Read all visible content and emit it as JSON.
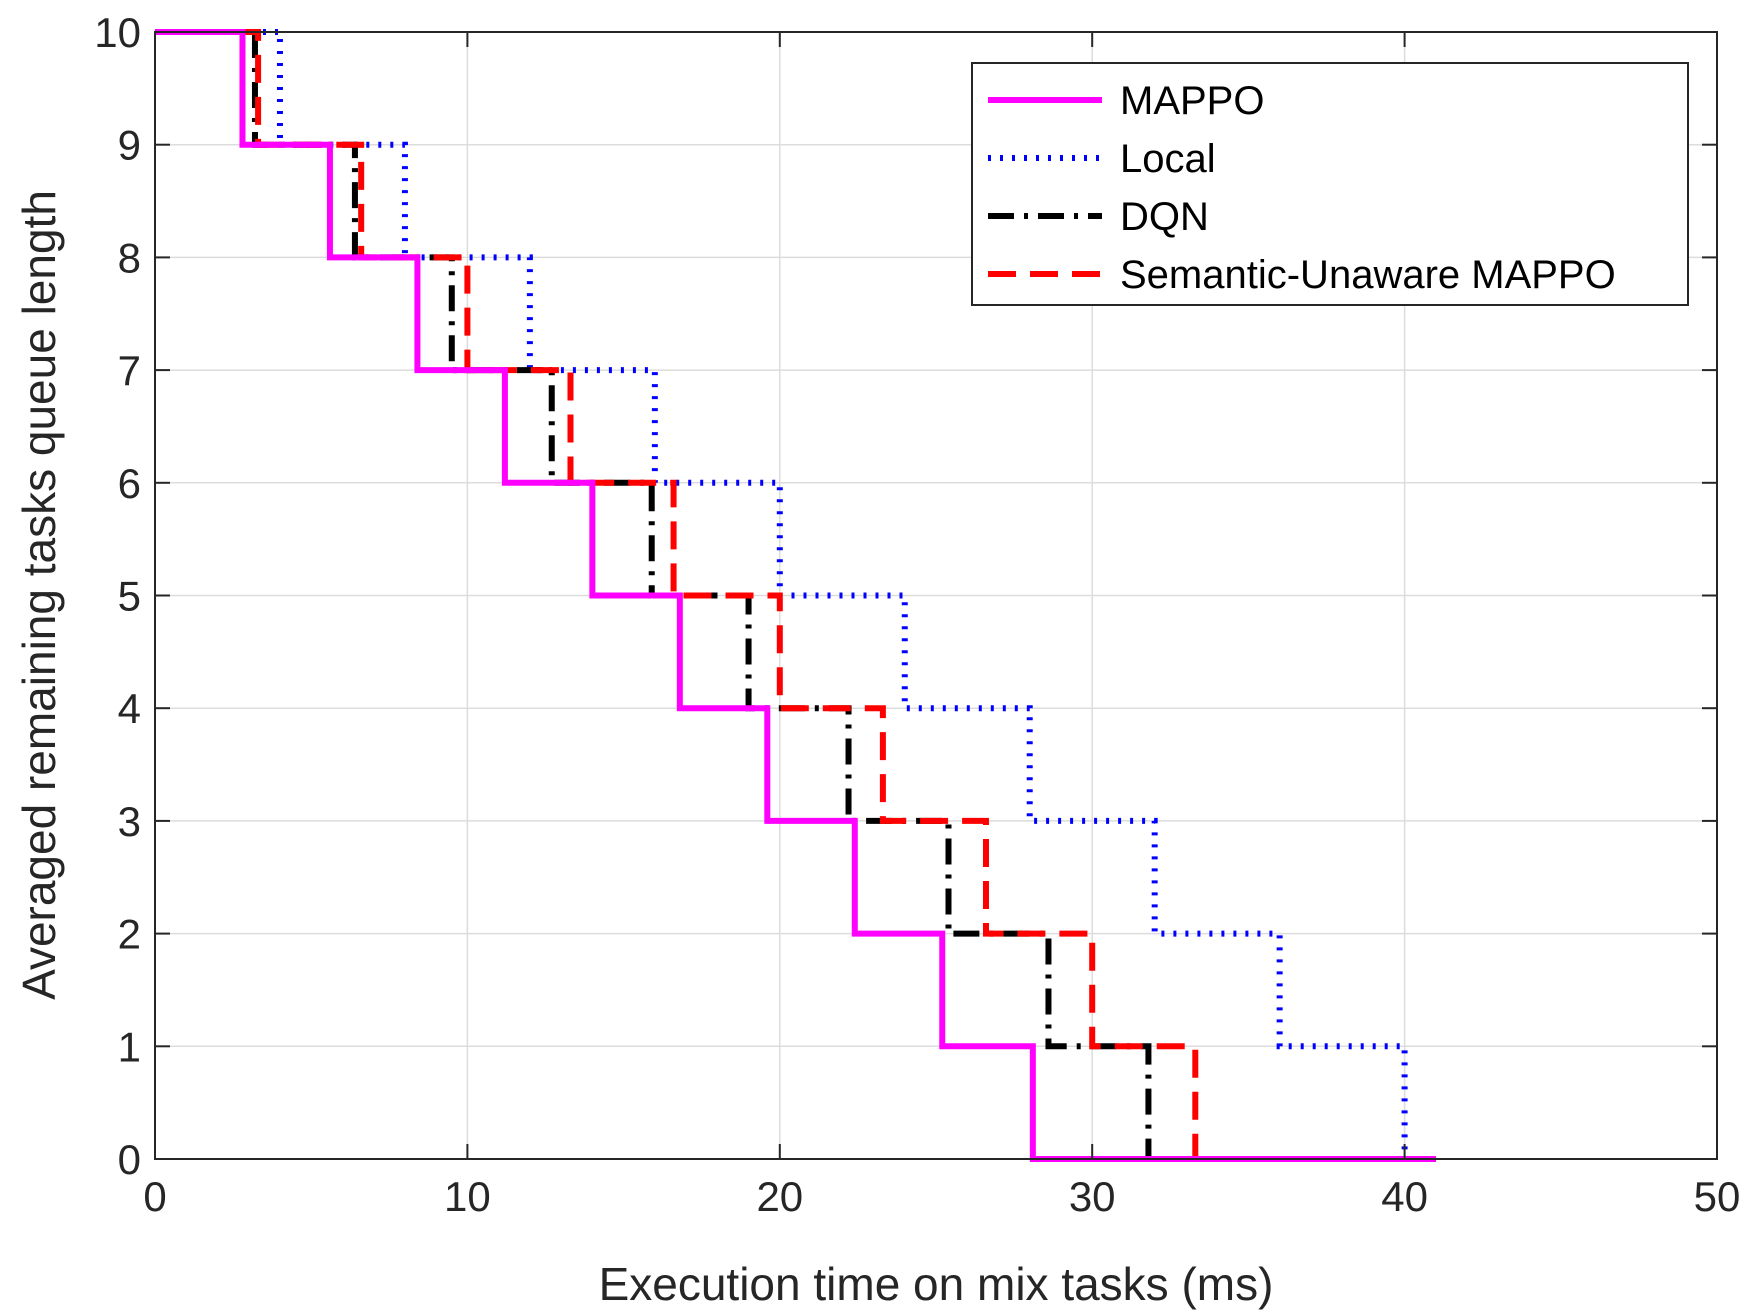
{
  "chart_data": {
    "type": "line",
    "title": "",
    "xlabel": "Execution time on mix tasks (ms)",
    "ylabel": "Averaged remaining tasks queue length",
    "xlim": [
      0,
      50
    ],
    "ylim": [
      0,
      10
    ],
    "xticks": [
      "0",
      "10",
      "20",
      "30",
      "40",
      "50"
    ],
    "yticks": [
      "0",
      "1",
      "2",
      "3",
      "4",
      "5",
      "6",
      "7",
      "8",
      "9",
      "10"
    ],
    "grid": true,
    "legend_position": "top-right",
    "series": [
      {
        "name": "MAPPO",
        "color": "#ff00ff",
        "style": "solid",
        "step_times": [
          2.8,
          5.6,
          8.4,
          11.2,
          14.0,
          16.8,
          19.6,
          22.4,
          25.2,
          28.1
        ],
        "end_x": 41
      },
      {
        "name": "Local",
        "color": "#0000ff",
        "style": "dotted",
        "step_times": [
          4.0,
          8.0,
          12.0,
          16.0,
          20.0,
          24.0,
          28.0,
          32.0,
          36.0,
          40.0
        ],
        "end_x": 41
      },
      {
        "name": "DQN",
        "color": "#000000",
        "style": "dashdot",
        "step_times": [
          3.2,
          6.4,
          9.5,
          12.7,
          15.9,
          19.0,
          22.2,
          25.4,
          28.6,
          31.8
        ],
        "end_x": 41
      },
      {
        "name": "Semantic-Unaware MAPPO",
        "color": "#ff0000",
        "style": "dashed",
        "step_times": [
          3.3,
          6.6,
          10.0,
          13.3,
          16.6,
          20.0,
          23.3,
          26.6,
          30.0,
          33.3
        ],
        "end_x": 41
      }
    ]
  }
}
